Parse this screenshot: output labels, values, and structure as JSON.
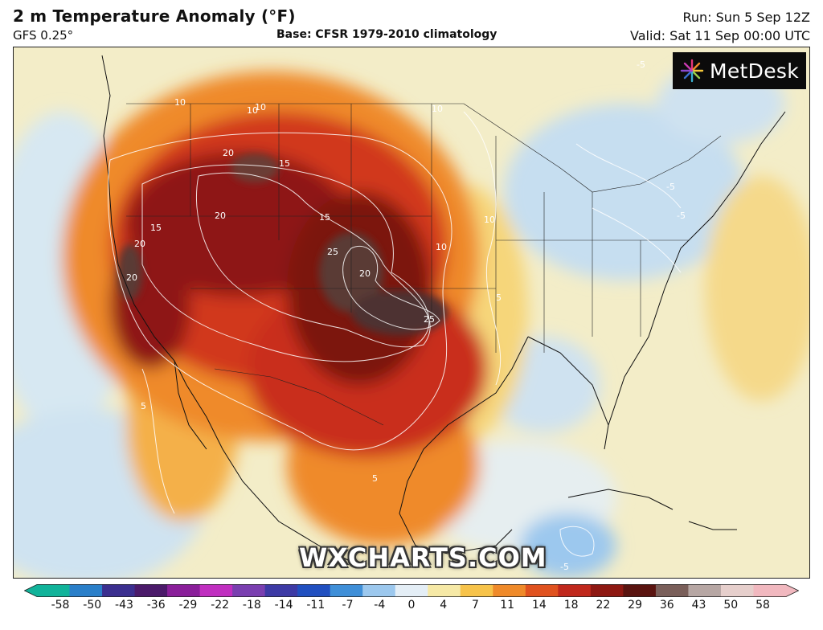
{
  "header": {
    "title": "2 m Temperature Anomaly (°F)",
    "model": "GFS 0.25°",
    "base": "Base: CFSR 1979-2010 climatology",
    "run": "Run: Sun 5 Sep 12Z",
    "valid": "Valid: Sat 11 Sep 00:00 UTC"
  },
  "logo": {
    "text": "MetDesk",
    "icon": "metdesk-burst-icon"
  },
  "watermark": "WXCHARTS.COM",
  "map": {
    "region": "North America",
    "contour_labels": [
      "10",
      "10",
      "10",
      "10",
      "15",
      "15",
      "20",
      "20",
      "20",
      "20",
      "25",
      "25",
      "5",
      "5",
      "5",
      "-5",
      "-5",
      "-5",
      "-5",
      "10",
      "10",
      "15",
      "20"
    ]
  },
  "colorbar": {
    "ticks": [
      "-58",
      "-50",
      "-43",
      "-36",
      "-29",
      "-22",
      "-18",
      "-14",
      "-11",
      "-7",
      "-4",
      "0",
      "4",
      "7",
      "11",
      "14",
      "18",
      "22",
      "29",
      "36",
      "43",
      "50",
      "58"
    ],
    "colors": [
      "#11b39a",
      "#2a7fc9",
      "#3b2f8f",
      "#4b1a6a",
      "#8a1f9a",
      "#c02fc0",
      "#7a3fb0",
      "#3d3aa5",
      "#2150c0",
      "#3f8fd8",
      "#9cc8ee",
      "#e4eef6",
      "#f6e9a6",
      "#f7c34a",
      "#ef8a2a",
      "#e0521f",
      "#c0281c",
      "#8e1812",
      "#5a1410",
      "#7a5f5a",
      "#b7a7a4",
      "#e6cfcc",
      "#f1b8bf"
    ]
  }
}
